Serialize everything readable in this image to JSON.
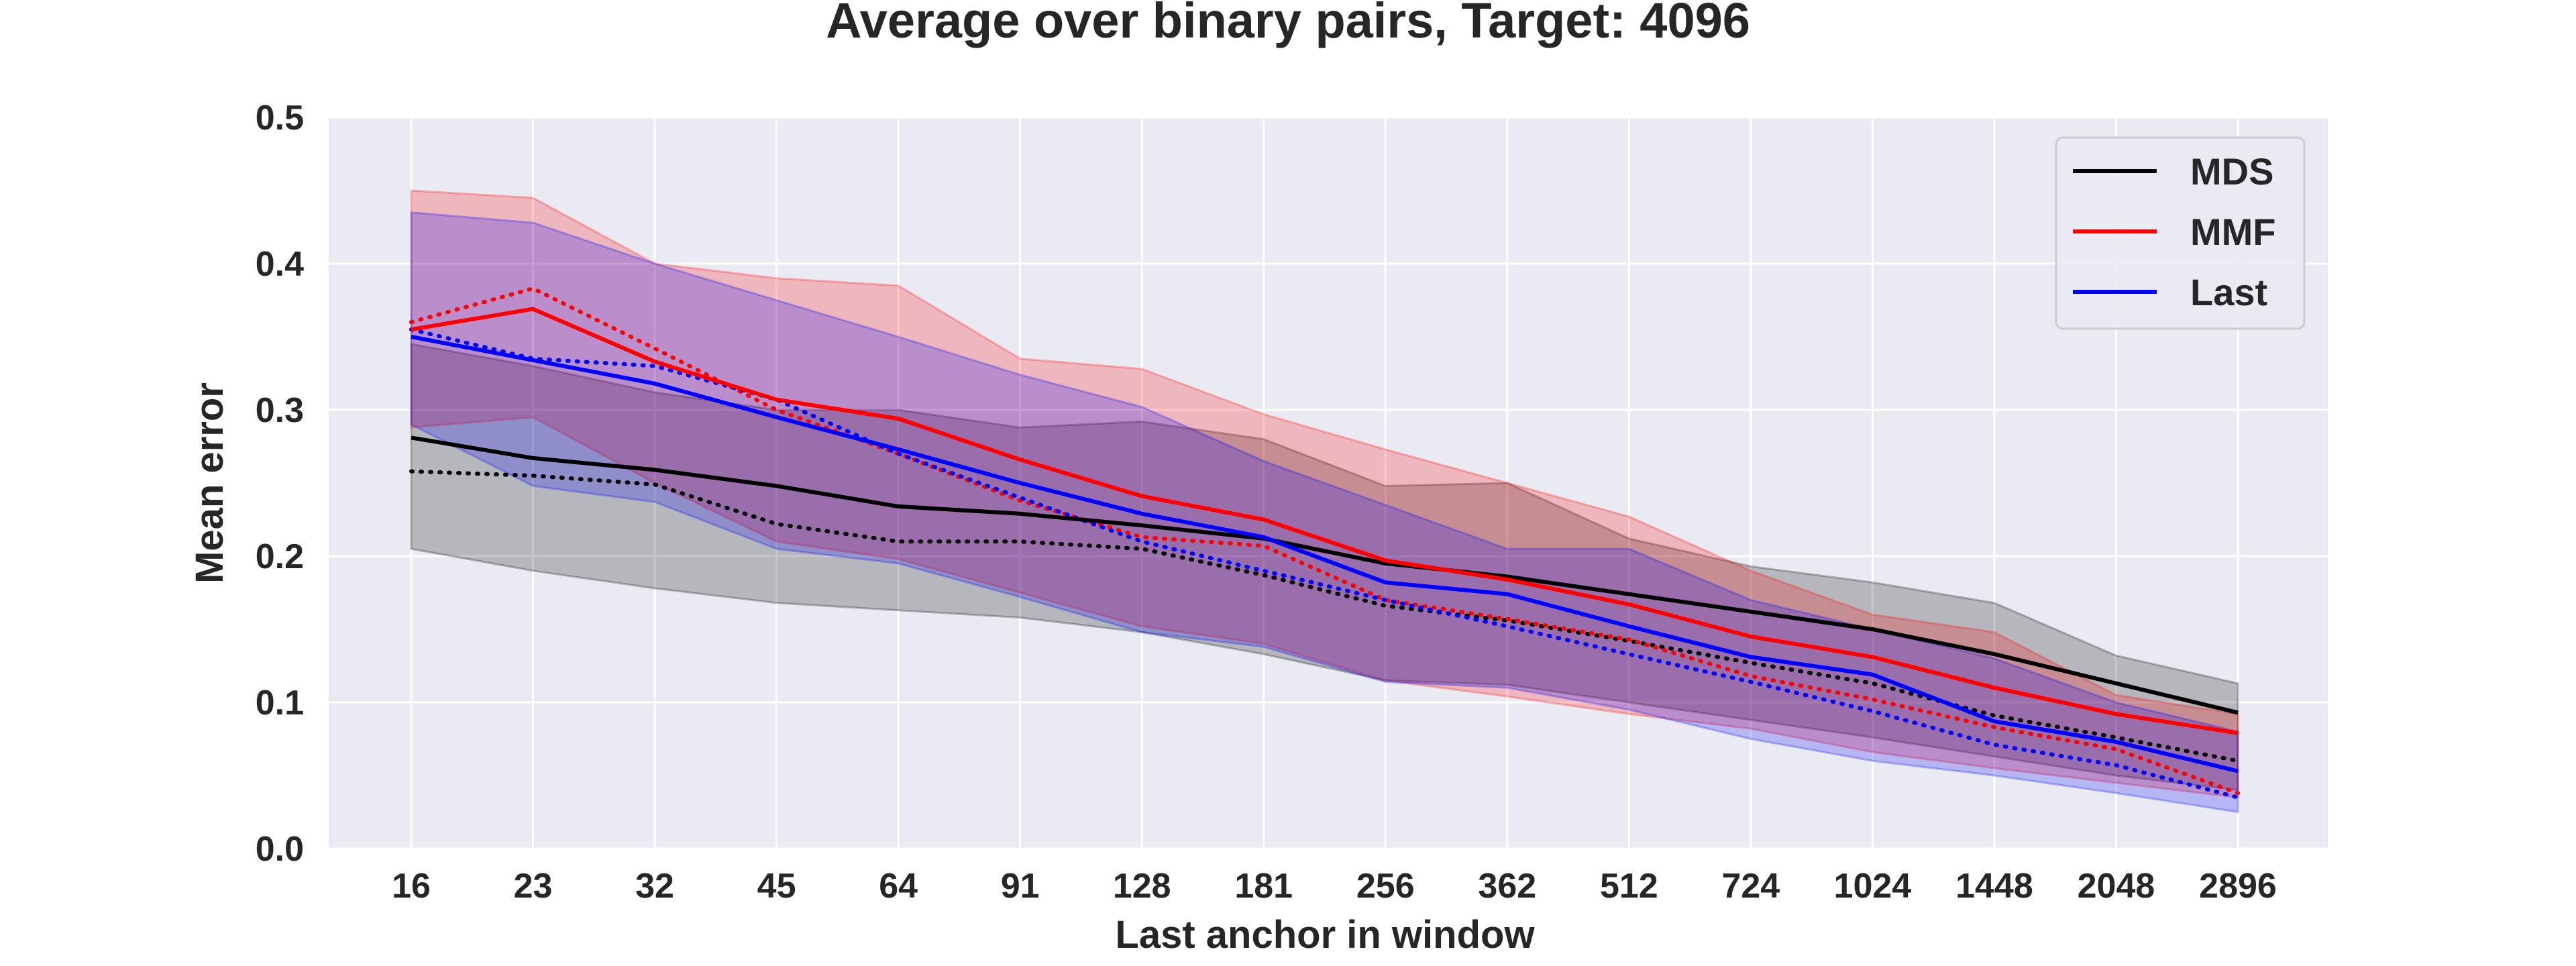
{
  "chart_data": {
    "type": "line",
    "title": "Average over binary pairs, Target: 4096",
    "xlabel": "Last anchor in window",
    "ylabel": "Mean error",
    "categories": [
      "16",
      "23",
      "32",
      "45",
      "64",
      "91",
      "128",
      "181",
      "256",
      "362",
      "512",
      "724",
      "1024",
      "1448",
      "2048",
      "2896"
    ],
    "ylim": [
      0,
      0.5
    ],
    "yticks": [
      "0.0",
      "0.1",
      "0.2",
      "0.3",
      "0.4",
      "0.5"
    ],
    "grid": true,
    "legend_position": "top-right",
    "colors": {
      "background": "#eaeaf2",
      "grid": "#ffffff",
      "MDS": "#000000",
      "MMF": "#ff0000",
      "Last": "#0000ff"
    },
    "series": [
      {
        "name": "MDS",
        "color": "#000000",
        "solid": [
          0.281,
          0.267,
          0.259,
          0.248,
          0.234,
          0.229,
          0.221,
          0.212,
          0.195,
          0.186,
          0.174,
          0.162,
          0.15,
          0.133,
          0.113,
          0.093
        ],
        "dotted": [
          0.258,
          0.255,
          0.249,
          0.222,
          0.21,
          0.21,
          0.205,
          0.187,
          0.166,
          0.156,
          0.142,
          0.127,
          0.113,
          0.091,
          0.076,
          0.06
        ],
        "band_upper": [
          0.345,
          0.33,
          0.312,
          0.3,
          0.3,
          0.288,
          0.292,
          0.28,
          0.248,
          0.25,
          0.212,
          0.193,
          0.182,
          0.168,
          0.132,
          0.113
        ],
        "band_lower": [
          0.205,
          0.19,
          0.178,
          0.168,
          0.163,
          0.158,
          0.148,
          0.133,
          0.115,
          0.112,
          0.1,
          0.088,
          0.076,
          0.063,
          0.05,
          0.04
        ]
      },
      {
        "name": "MMF",
        "color": "#ff0000",
        "solid": [
          0.355,
          0.369,
          0.333,
          0.307,
          0.294,
          0.266,
          0.241,
          0.225,
          0.197,
          0.184,
          0.167,
          0.145,
          0.131,
          0.11,
          0.092,
          0.079
        ],
        "dotted": [
          0.36,
          0.383,
          0.342,
          0.3,
          0.27,
          0.238,
          0.213,
          0.207,
          0.17,
          0.157,
          0.143,
          0.118,
          0.102,
          0.083,
          0.068,
          0.038
        ],
        "band_upper": [
          0.45,
          0.445,
          0.4,
          0.39,
          0.385,
          0.335,
          0.328,
          0.297,
          0.273,
          0.25,
          0.227,
          0.19,
          0.16,
          0.148,
          0.105,
          0.092
        ],
        "band_lower": [
          0.288,
          0.295,
          0.25,
          0.21,
          0.198,
          0.175,
          0.152,
          0.14,
          0.115,
          0.104,
          0.092,
          0.082,
          0.066,
          0.055,
          0.045,
          0.035
        ]
      },
      {
        "name": "Last",
        "color": "#0000ff",
        "solid": [
          0.35,
          0.334,
          0.318,
          0.295,
          0.273,
          0.25,
          0.229,
          0.213,
          0.182,
          0.174,
          0.152,
          0.131,
          0.119,
          0.087,
          0.073,
          0.053
        ],
        "dotted": [
          0.355,
          0.335,
          0.33,
          0.307,
          0.27,
          0.24,
          0.21,
          0.19,
          0.17,
          0.152,
          0.133,
          0.114,
          0.094,
          0.071,
          0.057,
          0.035
        ],
        "band_upper": [
          0.435,
          0.428,
          0.4,
          0.375,
          0.35,
          0.324,
          0.302,
          0.265,
          0.235,
          0.205,
          0.205,
          0.17,
          0.15,
          0.13,
          0.1,
          0.08
        ],
        "band_lower": [
          0.29,
          0.248,
          0.237,
          0.205,
          0.195,
          0.172,
          0.148,
          0.138,
          0.114,
          0.11,
          0.095,
          0.075,
          0.06,
          0.05,
          0.038,
          0.025
        ]
      }
    ]
  }
}
